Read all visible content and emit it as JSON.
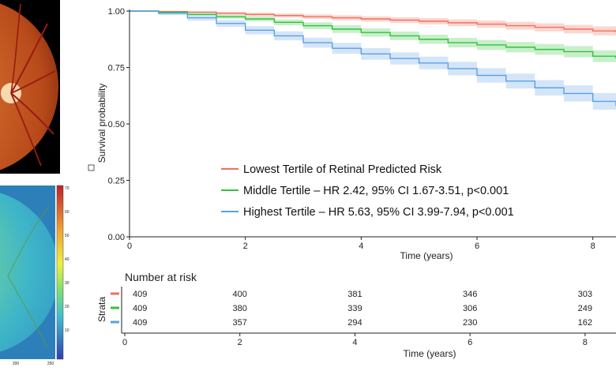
{
  "colors": {
    "lowest": "#f0705a",
    "middle": "#32c040",
    "highest": "#5aa0e6",
    "lowest_band": "#f9c9c2",
    "middle_band": "#b6e9b8",
    "highest_band": "#c5dcf6"
  },
  "chart_data": [
    {
      "type": "line",
      "chart": "kaplan-meier",
      "xlabel": "Time (years)",
      "ylabel": "Survival probability",
      "xlim": [
        0,
        8.4
      ],
      "ylim": [
        0,
        1
      ],
      "xticks": [
        "0",
        "2",
        "4",
        "6",
        "8"
      ],
      "yticks": [
        "0.00",
        "0.25",
        "0.50",
        "0.75",
        "1.00"
      ],
      "grid": false,
      "legend_position": "center",
      "series": [
        {
          "name": "Lowest Tertile of Retinal Predicted Risk",
          "color_key": "lowest",
          "x": [
            0,
            0.5,
            1,
            1.5,
            2,
            2.5,
            3,
            3.5,
            4,
            4.5,
            5,
            5.5,
            6,
            6.5,
            7,
            7.5,
            8,
            8.4
          ],
          "y": [
            1.0,
            0.998,
            0.995,
            0.99,
            0.985,
            0.98,
            0.975,
            0.97,
            0.965,
            0.96,
            0.955,
            0.948,
            0.942,
            0.935,
            0.928,
            0.92,
            0.912,
            0.905
          ],
          "ci_halfwidth": [
            0,
            0.002,
            0.004,
            0.006,
            0.008,
            0.009,
            0.01,
            0.011,
            0.012,
            0.013,
            0.014,
            0.015,
            0.016,
            0.017,
            0.018,
            0.019,
            0.02,
            0.021
          ]
        },
        {
          "name": "Middle Tertile – HR 2.42, 95% CI 1.67-3.51, p<0.001",
          "color_key": "middle",
          "x": [
            0,
            0.5,
            1,
            1.5,
            2,
            2.5,
            3,
            3.5,
            4,
            4.5,
            5,
            5.5,
            6,
            6.5,
            7,
            7.5,
            8,
            8.4
          ],
          "y": [
            1.0,
            0.995,
            0.985,
            0.975,
            0.965,
            0.95,
            0.935,
            0.92,
            0.905,
            0.89,
            0.875,
            0.86,
            0.85,
            0.84,
            0.83,
            0.82,
            0.8,
            0.79
          ],
          "ci_halfwidth": [
            0,
            0.004,
            0.007,
            0.009,
            0.011,
            0.013,
            0.015,
            0.017,
            0.018,
            0.019,
            0.02,
            0.021,
            0.022,
            0.023,
            0.024,
            0.025,
            0.026,
            0.027
          ]
        },
        {
          "name": "Highest Tertile – HR 5.63, 95% CI 3.99-7.94, p<0.001",
          "color_key": "highest",
          "x": [
            0,
            0.5,
            1,
            1.5,
            2,
            2.5,
            3,
            3.5,
            4,
            4.5,
            5,
            5.5,
            6,
            6.5,
            7,
            7.5,
            8,
            8.4
          ],
          "y": [
            1.0,
            0.99,
            0.97,
            0.945,
            0.915,
            0.89,
            0.86,
            0.835,
            0.81,
            0.79,
            0.77,
            0.745,
            0.715,
            0.69,
            0.66,
            0.635,
            0.6,
            0.58
          ],
          "ci_halfwidth": [
            0,
            0.008,
            0.012,
            0.015,
            0.018,
            0.02,
            0.022,
            0.024,
            0.026,
            0.027,
            0.028,
            0.03,
            0.032,
            0.033,
            0.034,
            0.036,
            0.037,
            0.04
          ]
        }
      ]
    },
    {
      "type": "table",
      "title": "Number at risk",
      "ylabel": "Strata",
      "xlabel": "Time (years)",
      "xticks": [
        "0",
        "2",
        "4",
        "6",
        "8"
      ],
      "rows": [
        {
          "color_key": "lowest",
          "values": [
            "409",
            "400",
            "381",
            "346",
            "303"
          ]
        },
        {
          "color_key": "middle",
          "values": [
            "409",
            "380",
            "339",
            "306",
            "249"
          ]
        },
        {
          "color_key": "highest",
          "values": [
            "409",
            "357",
            "294",
            "230",
            "162"
          ]
        }
      ]
    }
  ],
  "side_images": {
    "heatmap_colorbar_ticks": [
      "70",
      "60",
      "50",
      "40",
      "30",
      "20",
      "10"
    ],
    "heatmap_x_ticks": [
      "200",
      "250"
    ]
  }
}
